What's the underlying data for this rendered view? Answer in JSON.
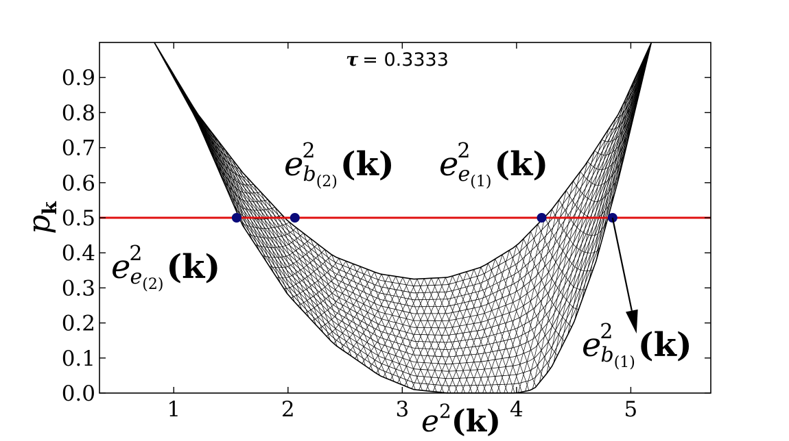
{
  "chart_data": {
    "type": "line",
    "title": "τ = 0.3333",
    "title_symbol": "τ",
    "title_value": "= 0.3333",
    "xlabel": {
      "base": "e",
      "sup": "2",
      "arg": "(k)"
    },
    "ylabel": {
      "base": "p",
      "sub": "k"
    },
    "xlim": [
      0.35,
      5.7
    ],
    "ylim": [
      0.0,
      1.0
    ],
    "x_ticks": [
      "1",
      "2",
      "3",
      "4",
      "5"
    ],
    "x_tick_values": [
      1,
      2,
      3,
      4,
      5
    ],
    "y_ticks": [
      "0.0",
      "0.1",
      "0.2",
      "0.3",
      "0.4",
      "0.5",
      "0.6",
      "0.7",
      "0.8",
      "0.9"
    ],
    "y_tick_values": [
      0.0,
      0.1,
      0.2,
      0.3,
      0.4,
      0.5,
      0.6,
      0.7,
      0.8,
      0.9
    ],
    "horizontal_line": {
      "y": 0.5,
      "color": "#e01010"
    },
    "mesh_color": "#000000",
    "envelope_inner": {
      "x": [
        0.83,
        1.2,
        1.6,
        2.0,
        2.4,
        2.8,
        3.1,
        3.4,
        3.7,
        4.0,
        4.3,
        4.6,
        4.9,
        5.18
      ],
      "y": [
        1.0,
        0.8,
        0.63,
        0.49,
        0.39,
        0.34,
        0.325,
        0.33,
        0.36,
        0.42,
        0.52,
        0.65,
        0.8,
        1.0
      ]
    },
    "envelope_outer": {
      "x": [
        0.83,
        1.2,
        1.6,
        2.0,
        2.4,
        2.8,
        3.1,
        3.4,
        3.7,
        4.0,
        4.15,
        4.3,
        4.5,
        4.7,
        4.9,
        5.18
      ],
      "y": [
        1.0,
        0.78,
        0.48,
        0.28,
        0.14,
        0.05,
        0.01,
        0.0,
        0.0,
        0.0,
        0.01,
        0.07,
        0.2,
        0.38,
        0.62,
        1.0
      ]
    },
    "points": [
      {
        "x": 1.55,
        "y": 0.5,
        "color": "#0a0a7a"
      },
      {
        "x": 2.06,
        "y": 0.5,
        "color": "#0a0a7a"
      },
      {
        "x": 4.22,
        "y": 0.5,
        "color": "#0a0a7a"
      },
      {
        "x": 4.84,
        "y": 0.5,
        "color": "#0a0a7a"
      }
    ],
    "annotations": [
      {
        "base": "e",
        "sup": "2",
        "sub": "e",
        "subsub": "(2)",
        "arg": "(k)"
      },
      {
        "base": "e",
        "sup": "2",
        "sub": "b",
        "subsub": "(2)",
        "arg": "(k)"
      },
      {
        "base": "e",
        "sup": "2",
        "sub": "e",
        "subsub": "(1)",
        "arg": "(k)"
      },
      {
        "base": "e",
        "sup": "2",
        "sub": "b",
        "subsub": "(1)",
        "arg": "(k)"
      }
    ],
    "arrow": {
      "from": [
        4.84,
        0.5
      ],
      "to": [
        5.05,
        0.17
      ]
    }
  }
}
